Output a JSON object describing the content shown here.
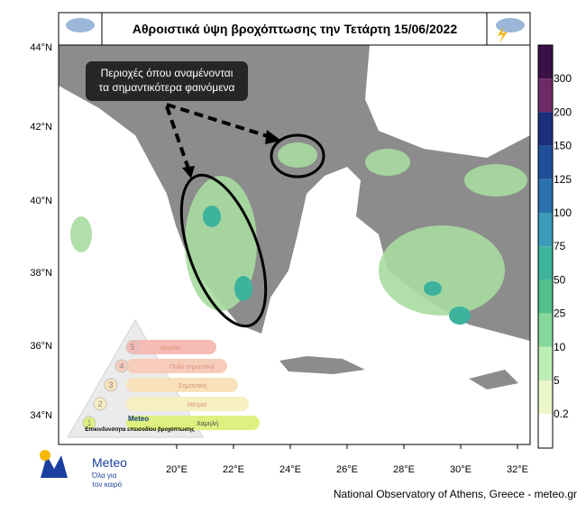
{
  "header": {
    "title": "Αθροιστικά ύψη βροχόπτωσης την Τετάρτη 15/06/2022"
  },
  "lat_labels": [
    "44°N",
    "42°N",
    "40°N",
    "38°N",
    "36°N",
    "34°N"
  ],
  "lon_labels": [
    "20°E",
    "22°E",
    "24°E",
    "26°E",
    "28°E",
    "30°E",
    "32°E"
  ],
  "colorbar": {
    "labels": [
      "300",
      "200",
      "150",
      "125",
      "100",
      "75",
      "50",
      "25",
      "10",
      "5",
      "0.2"
    ],
    "colors": [
      "#3a1047",
      "#6d2a66",
      "#1b2f7c",
      "#1f4e9b",
      "#2a72b0",
      "#3b9bb8",
      "#3db39e",
      "#52c189",
      "#86d89c",
      "#bdeeb6",
      "#ecf6cb",
      "#ffffff"
    ]
  },
  "annotation": {
    "lines": [
      "Περιοχές όπου αναμένονται",
      "τα σημαντικότερα φαινόμενα"
    ]
  },
  "risk": {
    "levels": [
      {
        "number": "5",
        "label": "Ακραία"
      },
      {
        "number": "4",
        "label": "Πολύ σημαντική"
      },
      {
        "number": "3",
        "label": "Σημαντική"
      },
      {
        "number": "2",
        "label": "Μέτρια"
      },
      {
        "number": "1",
        "label": "Χαμηλή"
      }
    ],
    "caption": "Επικινδυνότητα επεισοδίου βροχόπτωσης",
    "brand": "Meteo"
  },
  "logo": {
    "name": "Meteo",
    "tagline": [
      "Όλα για",
      "τον καιρό"
    ]
  },
  "footer": "National Observatory of Athens, Greece - meteo.gr"
}
